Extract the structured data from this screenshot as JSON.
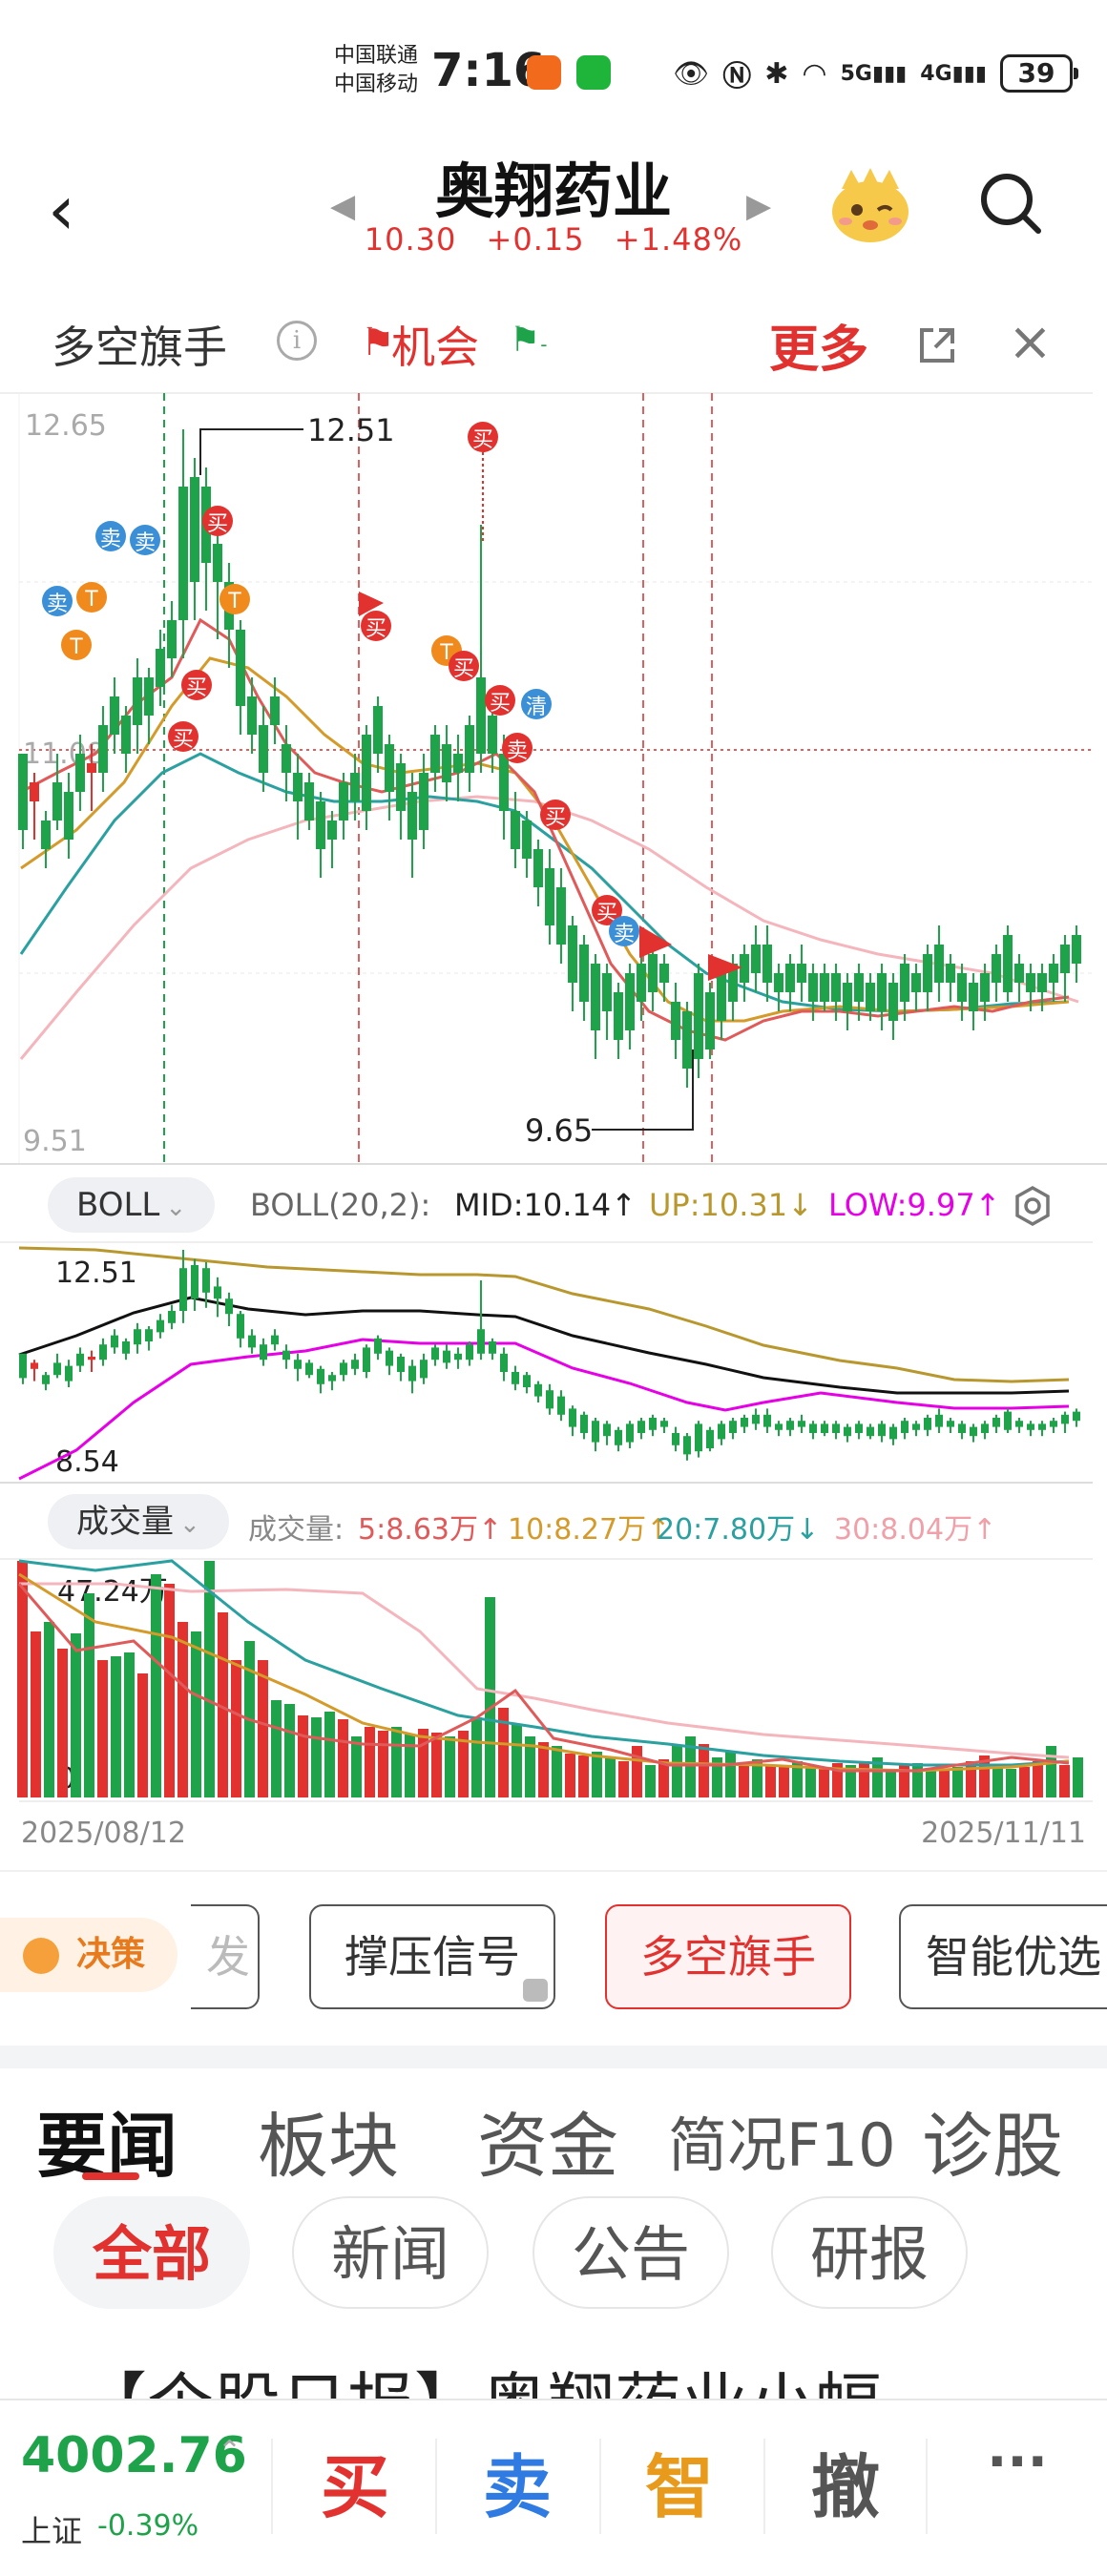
{
  "status_bar": {
    "carrier1": "中国联通",
    "carrier2": "中国移动",
    "time": "7:16",
    "signal_5g": "5G",
    "signal_4g": "4G",
    "battery": "39"
  },
  "header": {
    "title": "奥翔药业",
    "price": "10.30",
    "change": "+0.15",
    "change_pct": "+1.48%"
  },
  "indicator": {
    "title": "多空旗手",
    "chance_label": "机会",
    "more_label": "更多"
  },
  "main_chart": {
    "y_top_label": "12.65",
    "y_bottom_label": "9.51",
    "y_mid_label": "11.08",
    "high_label": "12.51",
    "low_label": "9.65",
    "signal_labels": {
      "buy": "买",
      "sell": "卖",
      "t": "T",
      "clear": "清"
    }
  },
  "boll": {
    "selector": "BOLL",
    "params": "BOLL(20,2):",
    "mid": "MID:10.14↑",
    "up": "UP:10.31↓",
    "low": "LOW:9.97↑",
    "y_top_label": "12.51",
    "y_bottom_label": "8.54"
  },
  "volume": {
    "selector": "成交量",
    "label": "成交量:",
    "ma5": "5:8.63万↑",
    "ma10": "10:8.27万↑",
    "ma20": "20:7.80万↓",
    "ma30": "30:8.04万↑",
    "y_top_label": "47.24万",
    "y_bottom_label": "0"
  },
  "dates": {
    "start": "2025/08/12",
    "end": "2025/11/11"
  },
  "signal_tabs": {
    "decision": "决策",
    "partial_left": "发",
    "tab1": "撑压信号",
    "tab2": "多空旗手",
    "tab3": "智能优选"
  },
  "news_tabs": [
    "要闻",
    "板块",
    "资金",
    "简况F10",
    "诊股"
  ],
  "news_chips": [
    "全部",
    "新闻",
    "公告",
    "研报"
  ],
  "headline": "【个股日报】奥翔药业小幅",
  "bottom_bar": {
    "index_value": "4002.76",
    "index_name": "上证",
    "index_change": "-0.39%",
    "buy": "买",
    "sell": "卖",
    "smart": "智",
    "cancel": "撤",
    "more": "···"
  },
  "chart_data": {
    "type": "candlestick",
    "x_range": [
      "2025/08/12",
      "2025/11/11"
    ],
    "ylim": [
      9.51,
      12.65
    ],
    "high": 12.51,
    "low": 9.65,
    "last_close": 10.3,
    "volume_ylim": [
      0,
      472400
    ]
  }
}
